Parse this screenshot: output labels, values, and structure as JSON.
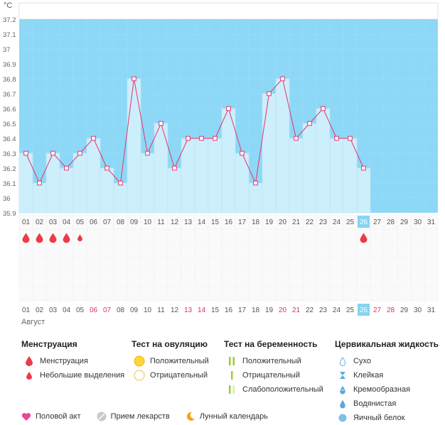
{
  "unit_label": "°C",
  "month_label": "Август",
  "chart_data": {
    "type": "line",
    "x": [
      "01",
      "02",
      "03",
      "04",
      "05",
      "06",
      "07",
      "08",
      "09",
      "10",
      "11",
      "12",
      "13",
      "14",
      "15",
      "16",
      "17",
      "18",
      "19",
      "20",
      "21",
      "22",
      "23",
      "24",
      "25",
      "26",
      "27",
      "28",
      "29",
      "30",
      "31"
    ],
    "values": [
      36.3,
      36.1,
      36.3,
      36.2,
      36.3,
      36.4,
      36.2,
      36.1,
      36.8,
      36.3,
      36.5,
      36.2,
      36.4,
      36.4,
      36.4,
      36.6,
      36.3,
      36.1,
      36.7,
      36.8,
      36.4,
      36.5,
      36.6,
      36.4,
      36.4,
      36.2,
      null,
      null,
      null,
      null,
      null
    ],
    "ylim": [
      35.9,
      37.2
    ],
    "yticks": [
      "35.9",
      "36",
      "36.1",
      "36.2",
      "36.3",
      "36.4",
      "36.5",
      "36.6",
      "36.7",
      "36.8",
      "36.9",
      "37",
      "37.1",
      "37.2"
    ],
    "current_day": "26",
    "menstruation_days": [
      "01",
      "02",
      "03",
      "04"
    ],
    "spotting_days": [
      "05"
    ],
    "menstruation_forecast_days": [
      "26"
    ],
    "weekend_days": [
      "06",
      "07",
      "13",
      "14",
      "20",
      "21",
      "27",
      "28"
    ],
    "colors": {
      "line": "#e6336e",
      "area": "#cdeefb",
      "band": "#8dd8f6",
      "today": "#87d4f0",
      "drop": "#ee3a47",
      "weekend": "#d6336b"
    }
  },
  "legend": {
    "menstruation": {
      "title": "Менструация",
      "items": [
        "Менструация",
        "Небольшие выделения"
      ]
    },
    "ovulation": {
      "title": "Тест на овуляцию",
      "items": [
        "Положительный",
        "Отрицательный"
      ]
    },
    "pregnancy": {
      "title": "Тест на беременность",
      "items": [
        "Положительный",
        "Отрицательный",
        "Слабоположительный"
      ]
    },
    "cervical": {
      "title": "Цервикальная жидкость",
      "items": [
        "Сухо",
        "Клейкая",
        "Кремообразная",
        "Водянистая",
        "Яичный белок"
      ]
    }
  },
  "bottom": [
    "Половой акт",
    "Прием лекарств",
    "Лунный календарь"
  ]
}
